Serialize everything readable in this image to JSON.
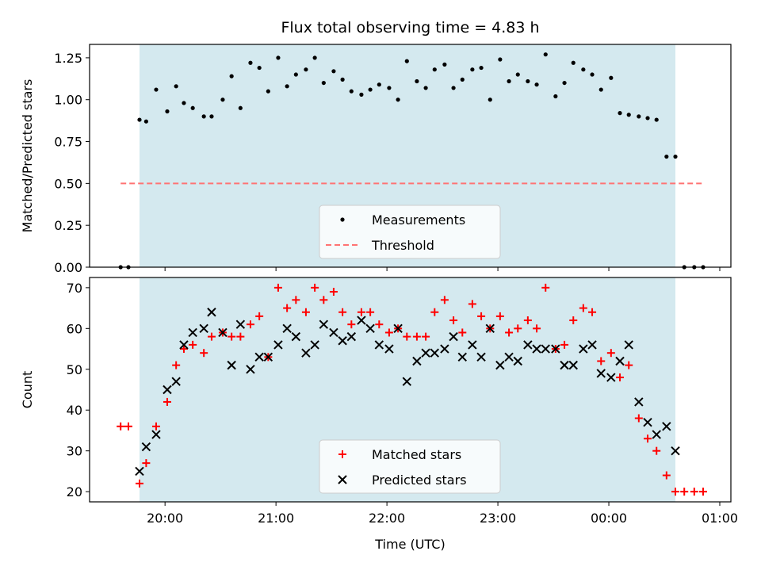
{
  "chart_data": [
    {
      "type": "scatter",
      "title": "Flux total observing time = 4.83 h",
      "ylabel": "Matched/Predicted stars",
      "xlabel": "",
      "x_unit": "hours (UTC, continuous past midnight)",
      "xlim": [
        19.32,
        25.1
      ],
      "ylim": [
        0,
        1.33
      ],
      "yticks": [
        0,
        0.25,
        0.5,
        0.75,
        1.0,
        1.25
      ],
      "ytick_labels": [
        "0.00",
        "0.25",
        "0.50",
        "0.75",
        "1.00",
        "1.25"
      ],
      "xticks": [
        20,
        21,
        22,
        23,
        24,
        25
      ],
      "xtick_labels": [],
      "shaded_span": {
        "x": [
          19.77,
          24.6
        ],
        "color": "#d4e9ef"
      },
      "grid": false,
      "legend": "lower center",
      "series": [
        {
          "name": "Measurements",
          "marker": "dot",
          "color": "#000000",
          "x": [
            19.6,
            19.67,
            19.77,
            19.83,
            19.92,
            20.02,
            20.1,
            20.17,
            20.25,
            20.35,
            20.42,
            20.52,
            20.6,
            20.68,
            20.77,
            20.85,
            20.93,
            21.02,
            21.1,
            21.18,
            21.27,
            21.35,
            21.43,
            21.52,
            21.6,
            21.68,
            21.77,
            21.85,
            21.93,
            22.02,
            22.1,
            22.18,
            22.27,
            22.35,
            22.43,
            22.52,
            22.6,
            22.68,
            22.77,
            22.85,
            22.93,
            23.02,
            23.1,
            23.18,
            23.27,
            23.35,
            23.43,
            23.52,
            23.6,
            23.68,
            23.77,
            23.85,
            23.93,
            24.02,
            24.1,
            24.18,
            24.27,
            24.35,
            24.43,
            24.52,
            24.6,
            24.68,
            24.77,
            24.85
          ],
          "y": [
            0,
            0,
            0.88,
            0.87,
            1.06,
            0.93,
            1.08,
            0.98,
            0.95,
            0.9,
            0.9,
            1.0,
            1.14,
            0.95,
            1.22,
            1.19,
            1.05,
            1.25,
            1.08,
            1.15,
            1.18,
            1.25,
            1.1,
            1.17,
            1.12,
            1.05,
            1.03,
            1.06,
            1.09,
            1.07,
            1.0,
            1.23,
            1.11,
            1.07,
            1.18,
            1.21,
            1.07,
            1.12,
            1.18,
            1.19,
            1.0,
            1.24,
            1.11,
            1.15,
            1.11,
            1.09,
            1.27,
            1.02,
            1.1,
            1.22,
            1.18,
            1.15,
            1.06,
            1.13,
            0.92,
            0.91,
            0.9,
            0.89,
            0.88,
            0.66,
            0.66,
            0,
            0,
            0
          ]
        },
        {
          "name": "Threshold",
          "type": "line",
          "style": "dashed",
          "color": "#ff7373",
          "x": [
            19.6,
            24.85
          ],
          "y": [
            0.5,
            0.5
          ]
        }
      ]
    },
    {
      "type": "scatter",
      "title": "",
      "ylabel": "Count",
      "xlabel": "Time (UTC)",
      "x_unit": "hours (UTC, continuous past midnight)",
      "xlim": [
        19.32,
        25.1
      ],
      "ylim": [
        17.5,
        72.5
      ],
      "yticks": [
        20,
        30,
        40,
        50,
        60,
        70
      ],
      "ytick_labels": [
        "20",
        "30",
        "40",
        "50",
        "60",
        "70"
      ],
      "xticks": [
        20,
        21,
        22,
        23,
        24,
        25
      ],
      "xtick_labels": [
        "20:00",
        "21:00",
        "22:00",
        "23:00",
        "00:00",
        "01:00"
      ],
      "shaded_span": {
        "x": [
          19.77,
          24.6
        ],
        "color": "#d4e9ef"
      },
      "grid": false,
      "legend": "lower center",
      "series": [
        {
          "name": "Matched stars",
          "marker": "plus",
          "color": "#ff0000",
          "x": [
            19.6,
            19.67,
            19.77,
            19.83,
            19.92,
            20.02,
            20.1,
            20.17,
            20.25,
            20.35,
            20.42,
            20.52,
            20.6,
            20.68,
            20.77,
            20.85,
            20.93,
            21.02,
            21.1,
            21.18,
            21.27,
            21.35,
            21.43,
            21.52,
            21.6,
            21.68,
            21.77,
            21.85,
            21.93,
            22.02,
            22.1,
            22.18,
            22.27,
            22.35,
            22.43,
            22.52,
            22.6,
            22.68,
            22.77,
            22.85,
            22.93,
            23.02,
            23.1,
            23.18,
            23.27,
            23.35,
            23.43,
            23.52,
            23.6,
            23.68,
            23.77,
            23.85,
            23.93,
            24.02,
            24.1,
            24.18,
            24.27,
            24.35,
            24.43,
            24.52,
            24.6,
            24.68,
            24.77,
            24.85
          ],
          "y": [
            36,
            36,
            22,
            27,
            36,
            42,
            51,
            55,
            56,
            54,
            58,
            59,
            58,
            58,
            61,
            63,
            53,
            70,
            65,
            67,
            64,
            70,
            67,
            69,
            64,
            61,
            64,
            64,
            61,
            59,
            60,
            58,
            58,
            58,
            64,
            67,
            62,
            59,
            66,
            63,
            60,
            63,
            59,
            60,
            62,
            60,
            70,
            55,
            56,
            62,
            65,
            64,
            52,
            54,
            48,
            51,
            38,
            33,
            30,
            24,
            20,
            20,
            20,
            20
          ]
        },
        {
          "name": "Predicted stars",
          "marker": "x",
          "color": "#000000",
          "x": [
            19.77,
            19.83,
            19.92,
            20.02,
            20.1,
            20.17,
            20.25,
            20.35,
            20.42,
            20.52,
            20.6,
            20.68,
            20.77,
            20.85,
            20.93,
            21.02,
            21.1,
            21.18,
            21.27,
            21.35,
            21.43,
            21.52,
            21.6,
            21.68,
            21.77,
            21.85,
            21.93,
            22.02,
            22.1,
            22.18,
            22.27,
            22.35,
            22.43,
            22.52,
            22.6,
            22.68,
            22.77,
            22.85,
            22.93,
            23.02,
            23.1,
            23.18,
            23.27,
            23.35,
            23.43,
            23.52,
            23.6,
            23.68,
            23.77,
            23.85,
            23.93,
            24.02,
            24.1,
            24.18,
            24.27,
            24.35,
            24.43,
            24.52,
            24.6
          ],
          "y": [
            25,
            31,
            34,
            45,
            47,
            56,
            59,
            60,
            64,
            59,
            51,
            61,
            50,
            53,
            53,
            56,
            60,
            58,
            54,
            56,
            61,
            59,
            57,
            58,
            62,
            60,
            56,
            55,
            60,
            47,
            52,
            54,
            54,
            55,
            58,
            53,
            56,
            53,
            60,
            51,
            53,
            52,
            56,
            55,
            55,
            55,
            51,
            51,
            55,
            56,
            49,
            48,
            52,
            56,
            42,
            37,
            34,
            36,
            30
          ]
        }
      ]
    }
  ]
}
